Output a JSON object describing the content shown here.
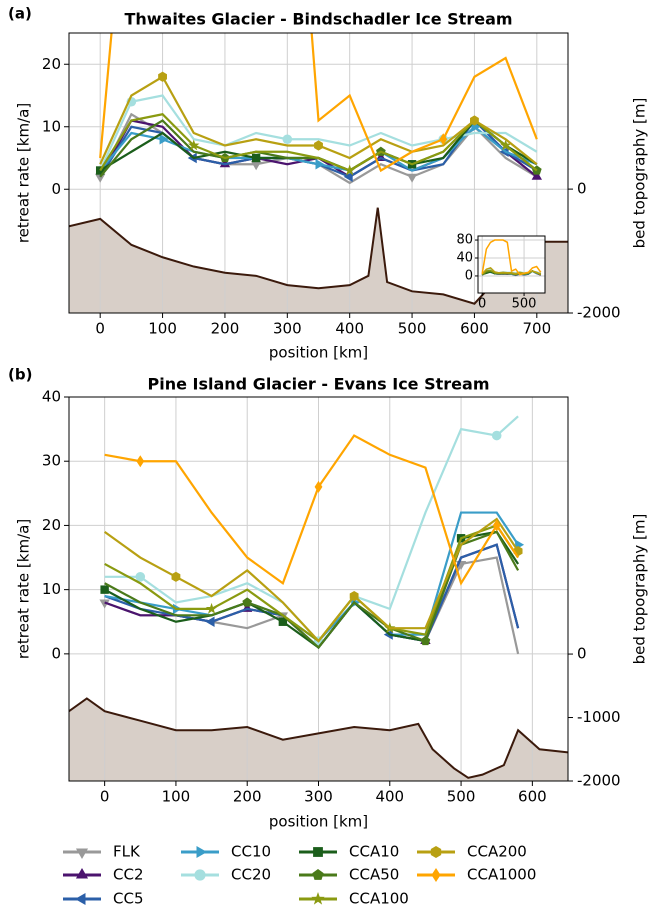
{
  "chart_data": [
    {
      "type": "line",
      "label": "(a)",
      "title": "Thwaites Glacier - Bindschadler Ice Stream",
      "x_label": "position [km]",
      "y_label": "retreat rate [km/a]",
      "y2_label": "bed topography [m]",
      "xlim": [
        -50,
        750
      ],
      "xticks": [
        0,
        100,
        200,
        300,
        400,
        500,
        600,
        700
      ],
      "ylim": [
        -19.8,
        25
      ],
      "yticks": [
        0,
        10,
        20
      ],
      "y2lim": [
        -2000,
        2520
      ],
      "y2ticks": [
        0,
        -2000
      ],
      "grid": true,
      "x": [
        0,
        50,
        100,
        150,
        200,
        250,
        300,
        350,
        400,
        450,
        500,
        550,
        600,
        650,
        700
      ],
      "series": [
        {
          "name": "FLK",
          "color": "#999999",
          "marker": "tri-down",
          "values": [
            2,
            12,
            9,
            5,
            4,
            4,
            5,
            4,
            1,
            4,
            2,
            4,
            10,
            5,
            2
          ]
        },
        {
          "name": "CC2",
          "color": "#4b136e",
          "marker": "tri-up",
          "values": [
            2,
            11,
            10,
            5,
            4,
            5,
            4,
            5,
            2,
            5,
            3,
            5,
            11,
            6,
            2
          ]
        },
        {
          "name": "CC5",
          "color": "#2b5fa8",
          "marker": "tri-left",
          "values": [
            2,
            10,
            9,
            5,
            4,
            5,
            5,
            4,
            2,
            5,
            3,
            4,
            11,
            6,
            3
          ]
        },
        {
          "name": "CC10",
          "color": "#3a9dc8",
          "marker": "tri-right",
          "values": [
            3,
            9,
            8,
            6,
            5,
            5,
            5,
            4,
            3,
            6,
            3,
            5,
            10,
            6,
            4
          ]
        },
        {
          "name": "CC20",
          "color": "#a5dfdf",
          "marker": "circle",
          "values": [
            3,
            14,
            15,
            8,
            7,
            9,
            8,
            8,
            7,
            9,
            7,
            8,
            9,
            9,
            6
          ]
        },
        {
          "name": "CCA10",
          "color": "#1b5e1b",
          "marker": "square",
          "values": [
            3,
            6,
            9,
            5,
            6,
            5,
            5,
            5,
            3,
            6,
            4,
            5,
            11,
            7,
            4
          ]
        },
        {
          "name": "CCA50",
          "color": "#4a7a1a",
          "marker": "pentagon",
          "values": [
            2,
            8,
            11,
            6,
            5,
            6,
            5,
            5,
            3,
            6,
            4,
            6,
            11,
            7,
            3
          ]
        },
        {
          "name": "CCA100",
          "color": "#8a9a10",
          "marker": "star",
          "values": [
            3,
            11,
            12,
            7,
            5,
            6,
            6,
            5,
            3,
            6,
            4,
            6,
            11,
            7,
            3
          ]
        },
        {
          "name": "CCA200",
          "color": "#b8a012",
          "marker": "hexagon",
          "values": [
            4,
            15,
            18,
            9,
            7,
            8,
            7,
            7,
            5,
            8,
            6,
            7,
            11,
            8,
            4
          ]
        },
        {
          "name": "CCA1000",
          "color": "#ffa500",
          "marker": "diamond",
          "values": [
            5,
            60,
            75,
            80,
            80,
            80,
            75,
            11,
            15,
            3,
            6,
            8,
            18,
            21,
            8
          ]
        }
      ],
      "bed": {
        "color": "#3b1a0c",
        "fill": "#d8cfc8",
        "x": [
          -50,
          0,
          50,
          100,
          150,
          200,
          250,
          300,
          350,
          400,
          430,
          445,
          460,
          500,
          550,
          600,
          650,
          700,
          750
        ],
        "values": [
          -600,
          -480,
          -900,
          -1100,
          -1250,
          -1350,
          -1400,
          -1550,
          -1600,
          -1550,
          -1400,
          -300,
          -1500,
          -1650,
          -1700,
          -1850,
          -1300,
          -850,
          -850
        ]
      },
      "inset": {
        "xlim": [
          -50,
          750
        ],
        "xticks": [
          0,
          500
        ],
        "ylim": [
          -38,
          89
        ],
        "yticks": [
          0,
          40,
          80
        ]
      }
    },
    {
      "type": "line",
      "label": "(b)",
      "title": "Pine Island Glacier - Evans Ice Stream",
      "x_label": "position [km]",
      "y_label": "retreat rate [km/a]",
      "y2_label": "bed topography [m]",
      "xlim": [
        -50,
        650
      ],
      "xticks": [
        0,
        100,
        200,
        300,
        400,
        500,
        600
      ],
      "ylim": [
        -19.8,
        40
      ],
      "yticks": [
        0,
        10,
        20,
        30,
        40
      ],
      "y2lim": [
        -2000,
        4050
      ],
      "y2ticks": [
        0,
        -1000,
        -2000
      ],
      "grid": true,
      "x": [
        0,
        50,
        100,
        150,
        200,
        250,
        300,
        350,
        400,
        450,
        500,
        550,
        580
      ],
      "series": [
        {
          "name": "FLK",
          "color": "#999999",
          "marker": "tri-down",
          "values": [
            8,
            6,
            6,
            5,
            4,
            6,
            1,
            8,
            3,
            2,
            14,
            15,
            0
          ]
        },
        {
          "name": "CC2",
          "color": "#4b136e",
          "marker": "tri-up",
          "values": [
            8,
            6,
            6,
            5,
            7,
            6,
            1,
            8,
            3,
            2,
            15,
            17,
            4
          ]
        },
        {
          "name": "CC5",
          "color": "#2b5fa8",
          "marker": "tri-left",
          "values": [
            9,
            7,
            6,
            5,
            7,
            6,
            1,
            8,
            3,
            2,
            15,
            17,
            4
          ]
        },
        {
          "name": "CC10",
          "color": "#3a9dc8",
          "marker": "tri-right",
          "values": [
            9,
            8,
            7,
            6,
            8,
            6,
            2,
            8,
            3,
            3,
            22,
            22,
            17
          ]
        },
        {
          "name": "CC20",
          "color": "#a5dfdf",
          "marker": "circle",
          "values": [
            12,
            12,
            8,
            9,
            11,
            8,
            2,
            9,
            7,
            22,
            35,
            34,
            37
          ]
        },
        {
          "name": "CCA10",
          "color": "#1b5e1b",
          "marker": "square",
          "values": [
            10,
            7,
            5,
            6,
            8,
            5,
            1,
            8,
            3,
            2,
            18,
            19,
            14
          ]
        },
        {
          "name": "CCA50",
          "color": "#4a7a1a",
          "marker": "pentagon",
          "values": [
            11,
            8,
            6,
            6,
            8,
            6,
            1,
            8,
            4,
            2,
            17,
            19,
            13
          ]
        },
        {
          "name": "CCA100",
          "color": "#8a9a10",
          "marker": "star",
          "values": [
            14,
            11,
            7,
            7,
            10,
            6,
            2,
            9,
            4,
            3,
            18,
            20,
            15
          ]
        },
        {
          "name": "CCA200",
          "color": "#b8a012",
          "marker": "hexagon",
          "values": [
            19,
            15,
            12,
            9,
            13,
            8,
            2,
            9,
            4,
            4,
            17,
            21,
            16
          ]
        },
        {
          "name": "CCA1000",
          "color": "#ffa500",
          "marker": "diamond",
          "values": [
            31,
            30,
            30,
            22,
            15,
            11,
            26,
            34,
            31,
            29,
            11,
            20,
            15
          ]
        }
      ],
      "bed": {
        "color": "#3b1a0c",
        "fill": "#d8cfc8",
        "x": [
          -50,
          -25,
          0,
          50,
          100,
          150,
          200,
          250,
          300,
          350,
          400,
          440,
          460,
          490,
          510,
          530,
          560,
          580,
          610,
          650
        ],
        "values": [
          -900,
          -700,
          -900,
          -1050,
          -1200,
          -1200,
          -1150,
          -1350,
          -1250,
          -1150,
          -1200,
          -1100,
          -1500,
          -1800,
          -1950,
          -1900,
          -1750,
          -1200,
          -1500,
          -1550
        ]
      }
    }
  ]
}
